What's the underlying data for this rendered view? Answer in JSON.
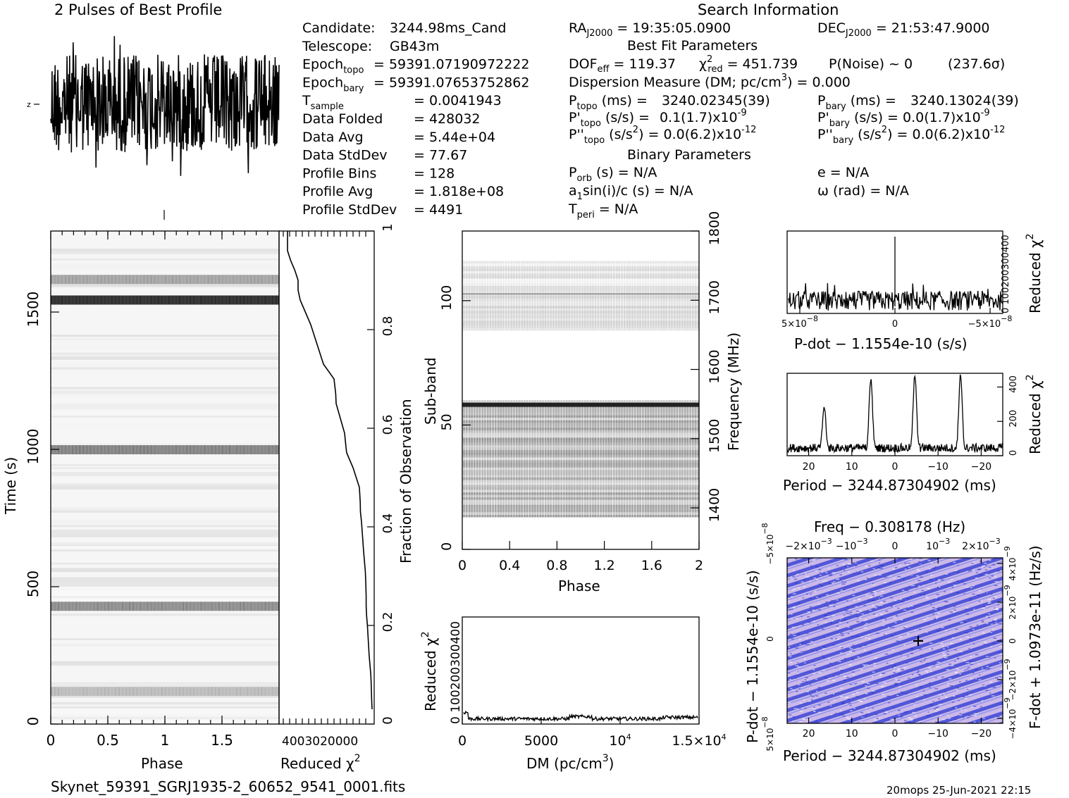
{
  "figure_title": "2 Pulses of Best Profile",
  "search_header": "Search Information",
  "footer_file": "Skynet_59391_SGRJ1935-2_60652_9541_0001.fits",
  "footer_stamp": "20mops 25-Jun-2021 22:15",
  "candidate_info": [
    {
      "key": "Candidate:",
      "value": "3244.98ms_Cand"
    },
    {
      "key": "Telescope:",
      "value": "GB43m"
    },
    {
      "key": "Epoch",
      "sub": "topo",
      "value": "= 59391.07190972222"
    },
    {
      "key": "Epoch",
      "sub": "bary",
      "value": "= 59391.07653752862"
    },
    {
      "key": "T",
      "sub": "sample",
      "value": "= 0.0041943"
    },
    {
      "key": "Data Folded",
      "value": "= 428032"
    },
    {
      "key": "Data Avg",
      "value": "= 5.44e+04"
    },
    {
      "key": "Data StdDev",
      "value": "= 77.67"
    },
    {
      "key": "Profile Bins",
      "value": "= 128"
    },
    {
      "key": "Profile Avg",
      "value": "= 1.818e+08"
    },
    {
      "key": "Profile StdDev",
      "value": "= 4491"
    }
  ],
  "search_info": {
    "ra": {
      "label": "RA",
      "sub": "J2000",
      "value": "= 19:35:05.0900"
    },
    "dec": {
      "label": "DEC",
      "sub": "J2000",
      "value": "= 21:53:47.9000"
    },
    "best_fit_header": "Best Fit Parameters",
    "dof": {
      "label": "DOF",
      "sub": "eff",
      "value": "= 119.37"
    },
    "chi2": {
      "label": "χ",
      "sup": "2",
      "sub": "red",
      "value": "= 451.739"
    },
    "pnoise": "P(Noise) ~ 0",
    "sigma": "(237.6σ)",
    "dm_line": {
      "text": "Dispersion Measure (DM; pc/cm",
      "sup": "3",
      "tail": ") = 0.000"
    },
    "ptopo": {
      "label": "P",
      "sub": "topo",
      "unit": "(ms) =",
      "value": "3240.02345(39)"
    },
    "pbary": {
      "label": "P",
      "sub": "bary",
      "unit": "(ms) =",
      "value": "3240.13024(39)"
    },
    "pdtopo": {
      "label": "P'",
      "sub": "topo",
      "unit": "(s/s) =",
      "value": "0.1(1.7)x10",
      "exp": "-9"
    },
    "pdbary": {
      "label": "P'",
      "sub": "bary",
      "unit": "(s/s) = 0.0(1.7)x10",
      "exp": "-9"
    },
    "pddtopo": {
      "label": "P''",
      "sub": "topo",
      "unit": "(s/s",
      "unit_sup": "2",
      "value": ") = 0.0(6.2)x10",
      "exp": "-12"
    },
    "pddbary": {
      "label": "P''",
      "sub": "bary",
      "unit": "(s/s",
      "unit_sup": "2",
      "value": ") = 0.0(6.2)x10",
      "exp": "-12"
    },
    "binary_header": "Binary Parameters",
    "porb": {
      "label": "P",
      "sub": "orb",
      "value": "(s) = N/A"
    },
    "ecc": "e = N/A",
    "asini": {
      "label": "a",
      "sub": "1",
      "value": "sin(i)/c (s) = N/A"
    },
    "omega": "ω (rad) = N/A",
    "tperi": {
      "label": "T",
      "sub": "peri",
      "value": "= N/A"
    }
  },
  "chart_data": [
    {
      "id": "profile",
      "type": "line",
      "title": "2 Pulses of Best Profile",
      "xlim": [
        0,
        2
      ],
      "description_note": "Noise-dominated folded profile, 2 pulses",
      "profile_bins": 128,
      "y_tick_label": "z"
    },
    {
      "id": "time-phase",
      "type": "heatmap",
      "xlabel": "Phase",
      "ylabel": "Time (s)",
      "xlim": [
        0,
        2
      ],
      "ylim": [
        0,
        1795
      ],
      "x_ticks": [
        "0",
        "0.5",
        "1",
        "1.5"
      ],
      "y_ticks": [
        "0",
        "500",
        "1000",
        "1500"
      ],
      "dark_bands_time_s": [
        {
          "t": 1545,
          "strength": 0.85
        },
        {
          "t": 1620,
          "strength": 0.3
        },
        {
          "t": 1000,
          "strength": 0.45
        },
        {
          "t": 430,
          "strength": 0.4
        },
        {
          "t": 120,
          "strength": 0.2
        }
      ]
    },
    {
      "id": "chi2-vs-fraction",
      "type": "line",
      "xlabel": "Reduced χ",
      "xlabel_sup": "2",
      "ylabel": "Fraction of Observation",
      "x_tick_text": "4003020000",
      "ylim": [
        0,
        1
      ],
      "y_ticks": [
        "0",
        "0.2",
        "0.4",
        "0.6",
        "0.8",
        "1"
      ],
      "x": [
        0,
        2,
        4,
        6,
        10,
        14,
        18,
        22,
        26,
        28,
        28,
        30,
        32,
        36,
        40,
        45,
        50,
        55,
        56,
        60,
        90,
        120,
        123,
        130,
        150,
        170,
        172,
        180,
        230,
        260,
        290,
        320,
        340,
        350,
        350,
        365,
        385,
        400,
        400
      ],
      "y": [
        0.03,
        0.05,
        0.08,
        0.1,
        0.12,
        0.14,
        0.17,
        0.2,
        0.22,
        0.24,
        0.26,
        0.29,
        0.31,
        0.33,
        0.35,
        0.38,
        0.41,
        0.43,
        0.45,
        0.48,
        0.52,
        0.55,
        0.56,
        0.59,
        0.62,
        0.65,
        0.67,
        0.7,
        0.73,
        0.77,
        0.81,
        0.84,
        0.86,
        0.88,
        0.9,
        0.92,
        0.94,
        0.96,
        1.0
      ]
    },
    {
      "id": "subband-phase",
      "type": "heatmap",
      "xlabel": "Phase",
      "ylabel": "Sub-band",
      "y2label": "Frequency (MHz)",
      "xlim": [
        0,
        2
      ],
      "ylim": [
        0,
        128
      ],
      "y2lim": [
        1340,
        1800
      ],
      "x_ticks": [
        "0",
        "0.4",
        "0.8",
        "1.2",
        "1.6",
        "2"
      ],
      "y_ticks": [
        "0",
        "50",
        "100"
      ],
      "y2_ticks": [
        "1400",
        "1500",
        "1600",
        "1700",
        "1800"
      ],
      "occupied_subbands": [
        [
          13,
          59
        ],
        [
          88,
          115
        ]
      ]
    },
    {
      "id": "dm-curve",
      "type": "line",
      "xlabel": "DM (pc/cm",
      "xlabel_sup": "3",
      "xlabel_tail": ")",
      "ylabel": "Reduced χ",
      "ylabel_sup": "2",
      "xlim": [
        0,
        15000
      ],
      "x_ticks": [
        "0",
        "5000",
        "10",
        "1.5×10"
      ],
      "x_tick_exp": [
        "",
        "",
        "4",
        "4"
      ],
      "y_tick_text": "0 100200300400",
      "ylim": [
        0,
        450
      ]
    },
    {
      "id": "pdot-curve",
      "type": "line",
      "xlabel": "P-dot − 1.1554e-10 (s/s)",
      "ylabel": "Reduced χ",
      "ylabel_sup": "2",
      "x_ticks": [
        "5×10",
        "0",
        "−5×10"
      ],
      "x_tick_exp": [
        "−8",
        "",
        "−8"
      ],
      "y_tick_text": "0 100200300400",
      "peak_x": 0
    },
    {
      "id": "period-curve",
      "type": "line",
      "xlabel": "Period − 3244.87304902 (ms)",
      "ylabel": "Reduced χ",
      "ylabel_sup": "2",
      "xlim": [
        25,
        -25
      ],
      "ylim": [
        0,
        480
      ],
      "x_ticks": [
        "20",
        "10",
        "0",
        "−10",
        "−20"
      ],
      "y_ticks": [
        "0",
        "200",
        "400"
      ],
      "peaks_ms": [
        16.4,
        5.6,
        -4.6,
        -15.2
      ],
      "peak_heights": [
        270,
        430,
        450,
        440
      ]
    },
    {
      "id": "period-pdot",
      "type": "heatmap",
      "title": "Freq − 0.308178 (Hz)",
      "xlabel": "Period − 3244.87304902 (ms)",
      "ylabel": "P-dot − 1.1554e-10 (s/s)",
      "y2label": "F-dot + 1.0973e-11 (Hz/s)",
      "x_ticks": [
        "20",
        "10",
        "0",
        "−10",
        "−20"
      ],
      "top_ticks": [
        "−2×10",
        "−10",
        "0",
        "10",
        "2×10"
      ],
      "top_tick_exp": [
        "−3",
        "−3",
        "",
        "−3",
        "−3"
      ],
      "y_ticks": [
        "5×10",
        "0",
        "−5×10"
      ],
      "y_tick_exp": [
        "−8",
        "",
        "−8"
      ],
      "y2_ticks": [
        "−4×10",
        "−2×10",
        "0",
        "2×10",
        "4×10"
      ],
      "y2_tick_exp": [
        "−9",
        "−9",
        "",
        "−9",
        "−9"
      ],
      "colors": {
        "background": "#c9b6e6",
        "stripe": "#3b45d6",
        "accent": "#6f7ef0"
      }
    }
  ]
}
